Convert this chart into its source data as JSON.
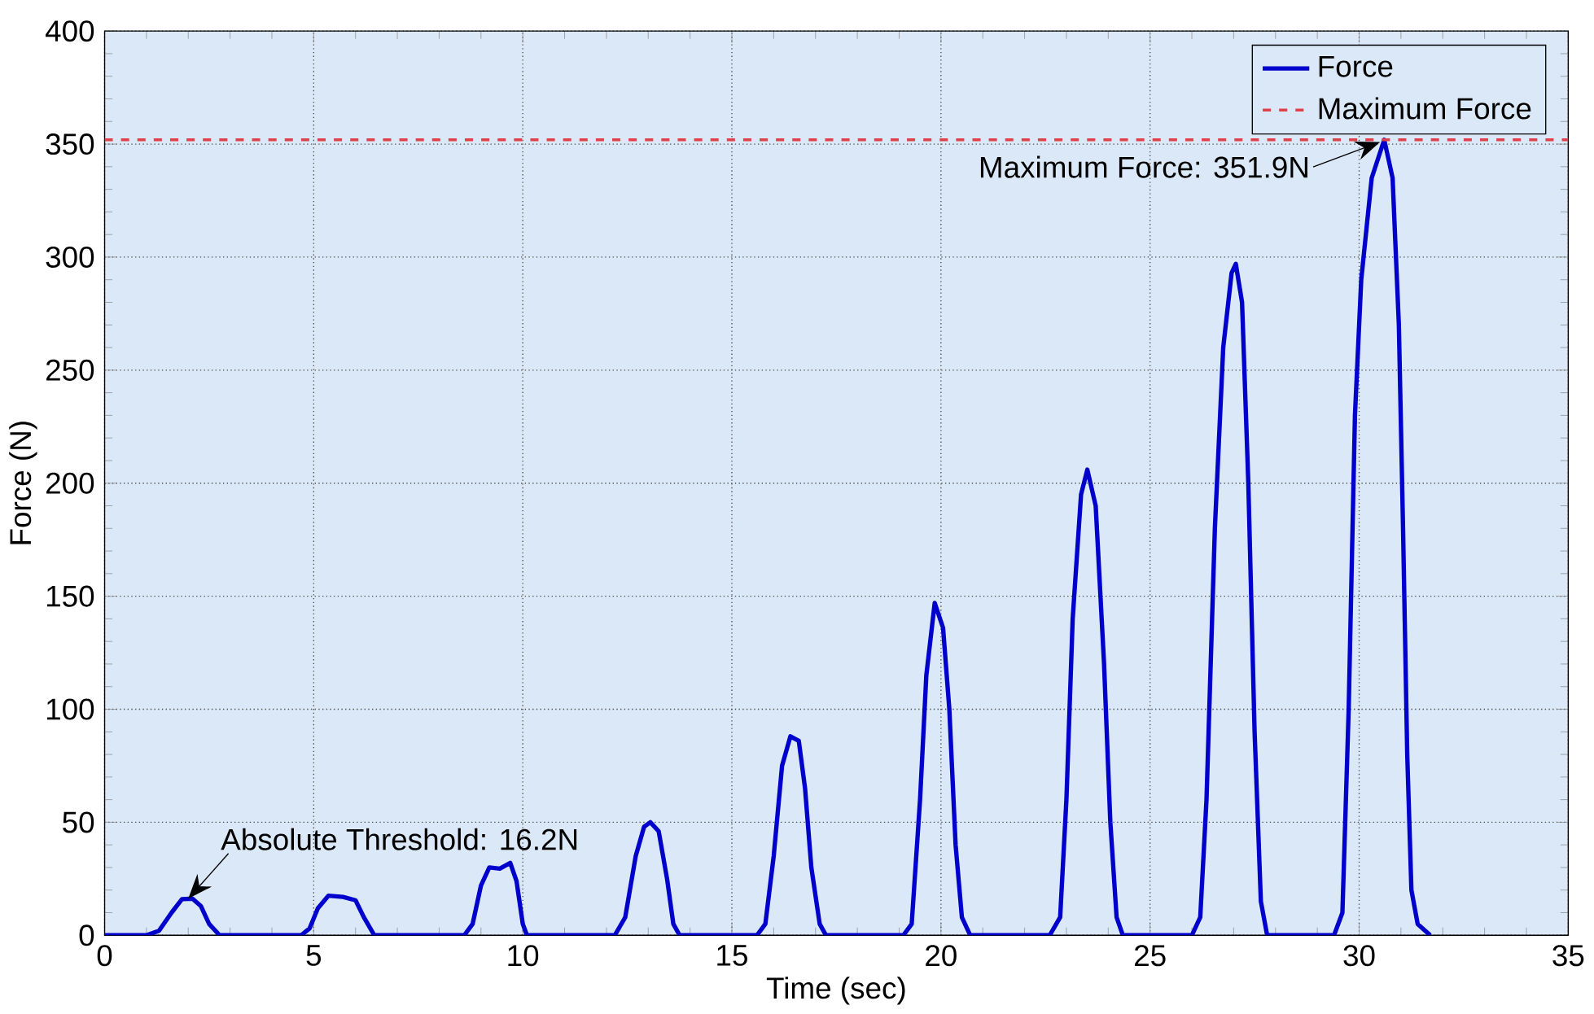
{
  "chart_data": {
    "type": "line",
    "xlabel": "Time (sec)",
    "ylabel": "Force (N)",
    "xlim": [
      0,
      35
    ],
    "xticks": [
      0,
      5,
      10,
      15,
      20,
      25,
      30,
      35
    ],
    "ylim": [
      0,
      400
    ],
    "yticks": [
      0,
      50,
      100,
      150,
      200,
      250,
      300,
      350,
      400
    ],
    "grid": true,
    "legend": "top right",
    "series": [
      {
        "name": "Force",
        "color": "#0000cc",
        "line_style": "solid",
        "x": [
          0,
          1.0,
          1.3,
          1.6,
          1.85,
          2.1,
          2.3,
          2.5,
          2.75,
          4.7,
          4.9,
          5.1,
          5.35,
          5.7,
          6.0,
          6.2,
          6.45,
          8.6,
          8.8,
          9.0,
          9.2,
          9.45,
          9.7,
          9.85,
          10.0,
          10.1,
          12.2,
          12.45,
          12.7,
          12.9,
          13.05,
          13.25,
          13.45,
          13.6,
          13.75,
          15.6,
          15.8,
          16.0,
          16.2,
          16.4,
          16.6,
          16.75,
          16.9,
          17.1,
          17.25,
          19.1,
          19.3,
          19.5,
          19.65,
          19.85,
          20.05,
          20.2,
          20.35,
          20.5,
          20.7,
          22.6,
          22.85,
          23.0,
          23.15,
          23.35,
          23.5,
          23.7,
          23.9,
          24.05,
          24.2,
          24.35,
          26.0,
          26.2,
          26.35,
          26.55,
          26.75,
          26.95,
          27.05,
          27.2,
          27.35,
          27.5,
          27.65,
          27.8,
          29.4,
          29.6,
          29.75,
          29.9,
          30.05,
          30.3,
          30.6,
          30.8,
          30.95,
          31.05,
          31.15,
          31.25,
          31.4,
          31.7
        ],
        "values": [
          0,
          0,
          2,
          10,
          16,
          16.2,
          13,
          5,
          0,
          0,
          3,
          12,
          17.5,
          17,
          15.5,
          8,
          0,
          0,
          5,
          22,
          30,
          29.5,
          32,
          24,
          5,
          0,
          0,
          8,
          35,
          48,
          50,
          46,
          25,
          5,
          0,
          0,
          5,
          35,
          75,
          88,
          86,
          65,
          30,
          5,
          0,
          0,
          5,
          60,
          115,
          147,
          136,
          100,
          40,
          8,
          0,
          0,
          8,
          60,
          140,
          195,
          206,
          190,
          120,
          50,
          8,
          0,
          0,
          8,
          60,
          180,
          260,
          293,
          297,
          280,
          200,
          90,
          15,
          0,
          0,
          10,
          100,
          230,
          290,
          335,
          351.9,
          335,
          270,
          180,
          80,
          20,
          5,
          0
        ]
      },
      {
        "name": "Maximum Force",
        "color": "#e0404a",
        "line_style": "dashed",
        "x": [
          0,
          35
        ],
        "values": [
          351.9,
          351.9
        ]
      }
    ],
    "annotations": [
      {
        "text": "Absolute Threshold: 16.2N",
        "x": 2.0,
        "y": 16.2
      },
      {
        "text": "Maximum Force: 351.9N",
        "x": 30.6,
        "y": 351.9
      }
    ]
  }
}
